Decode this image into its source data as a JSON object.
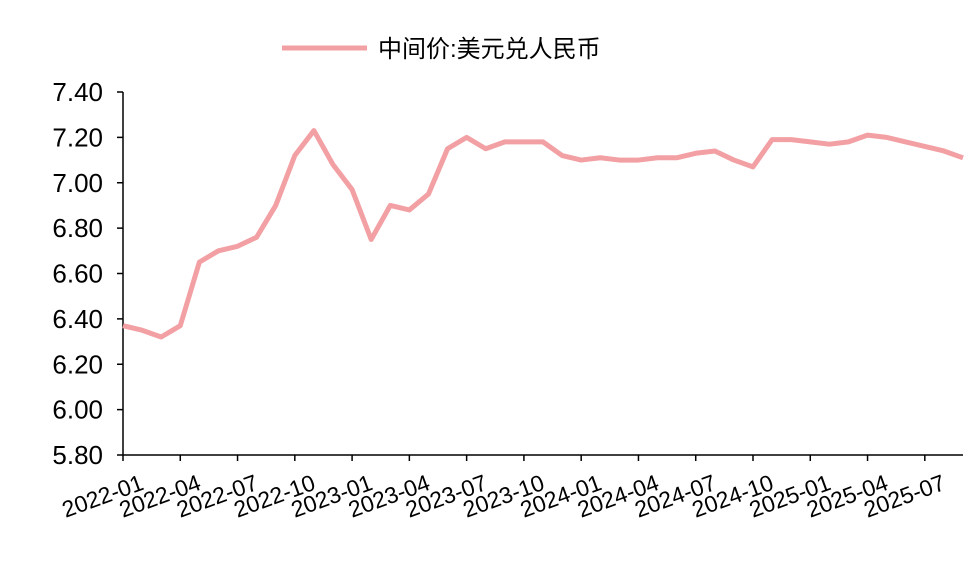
{
  "chart_data": {
    "type": "line",
    "x": [
      "2022-01",
      "2022-02",
      "2022-03",
      "2022-04",
      "2022-05",
      "2022-06",
      "2022-07",
      "2022-08",
      "2022-09",
      "2022-10",
      "2022-11",
      "2022-12",
      "2023-01",
      "2023-02",
      "2023-03",
      "2023-04",
      "2023-05",
      "2023-06",
      "2023-07",
      "2023-08",
      "2023-09",
      "2023-10",
      "2023-11",
      "2023-12",
      "2024-01",
      "2024-02",
      "2024-03",
      "2024-04",
      "2024-05",
      "2024-06",
      "2024-07",
      "2024-08",
      "2024-09",
      "2024-10",
      "2024-11",
      "2024-12",
      "2025-01",
      "2025-02",
      "2025-03",
      "2025-04",
      "2025-05",
      "2025-06",
      "2025-07",
      "2025-08",
      "2025-09"
    ],
    "series": [
      {
        "name": "中间价:美元兑人民币",
        "color": "#f2a0a3",
        "values": [
          6.37,
          6.35,
          6.32,
          6.37,
          6.65,
          6.7,
          6.72,
          6.76,
          6.9,
          7.12,
          7.23,
          7.08,
          6.97,
          6.75,
          6.9,
          6.88,
          6.95,
          7.15,
          7.2,
          7.15,
          7.18,
          7.18,
          7.18,
          7.12,
          7.1,
          7.11,
          7.1,
          7.1,
          7.11,
          7.11,
          7.13,
          7.14,
          7.1,
          7.07,
          7.19,
          7.19,
          7.18,
          7.17,
          7.18,
          7.21,
          7.2,
          7.18,
          7.16,
          7.14,
          7.11
        ]
      }
    ],
    "xlim": [
      "2022-01",
      "2025-09"
    ],
    "xticks": [
      "2022-01",
      "2022-04",
      "2022-07",
      "2022-10",
      "2023-01",
      "2023-04",
      "2023-07",
      "2023-10",
      "2024-01",
      "2024-04",
      "2024-07",
      "2024-10",
      "2025-01",
      "2025-04",
      "2025-07"
    ],
    "ylim": [
      5.8,
      7.4
    ],
    "yticks": [
      {
        "value": 5.8,
        "label": "5.80"
      },
      {
        "value": 6.0,
        "label": "6.00"
      },
      {
        "value": 6.2,
        "label": "6.20"
      },
      {
        "value": 6.4,
        "label": "6.40"
      },
      {
        "value": 6.6,
        "label": "6.60"
      },
      {
        "value": 6.8,
        "label": "6.80"
      },
      {
        "value": 7.0,
        "label": "7.00"
      },
      {
        "value": 7.2,
        "label": "7.20"
      },
      {
        "value": 7.4,
        "label": "7.40"
      }
    ],
    "legend": "top"
  }
}
